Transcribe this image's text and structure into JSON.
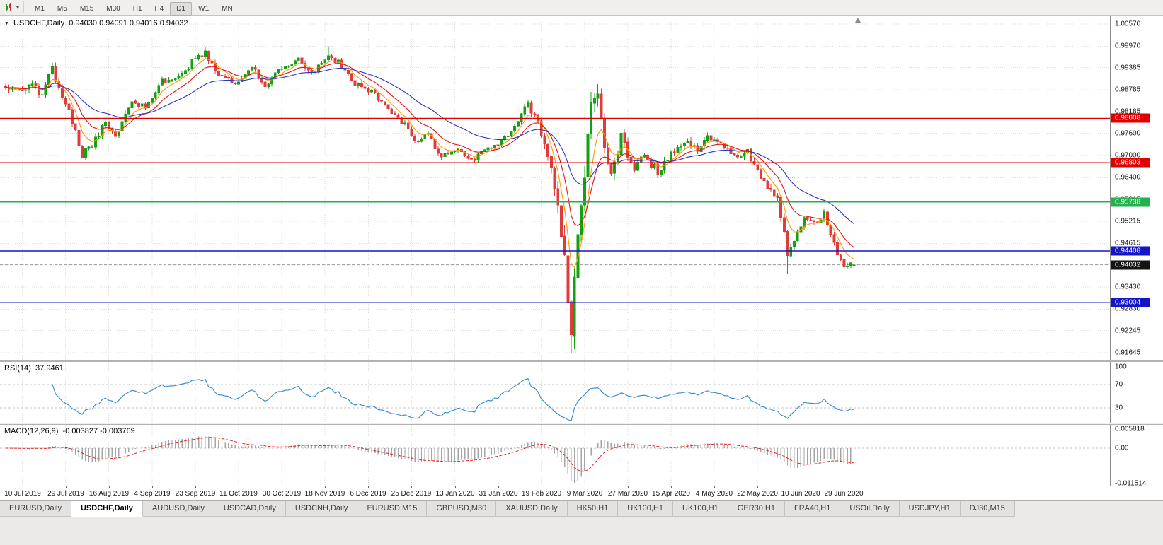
{
  "toolbar": {
    "chart_icon": "candlestick-chart-icon",
    "timeframes": [
      {
        "label": "M1",
        "active": false
      },
      {
        "label": "M5",
        "active": false
      },
      {
        "label": "M15",
        "active": false
      },
      {
        "label": "M30",
        "active": false
      },
      {
        "label": "H1",
        "active": false
      },
      {
        "label": "H4",
        "active": false
      },
      {
        "label": "D1",
        "active": true
      },
      {
        "label": "W1",
        "active": false
      },
      {
        "label": "MN",
        "active": false
      }
    ]
  },
  "main_chart": {
    "symbol": "USDCHF,Daily",
    "ohlc_text": "0.94030 0.94091 0.94016 0.94032",
    "y_axis_labels": [
      "1.00570",
      "0.99970",
      "0.99385",
      "0.98785",
      "0.98185",
      "0.97600",
      "0.97000",
      "0.96400",
      "0.95815",
      "0.95215",
      "0.94615",
      "0.94030",
      "0.93430",
      "0.92830",
      "0.92245",
      "0.91645"
    ],
    "x_axis_labels": [
      "10 Jul 2019",
      "29 Jul 2019",
      "16 Aug 2019",
      "4 Sep 2019",
      "23 Sep 2019",
      "11 Oct 2019",
      "30 Oct 2019",
      "18 Nov 2019",
      "6 Dec 2019",
      "25 Dec 2019",
      "13 Jan 2020",
      "31 Jan 2020",
      "19 Feb 2020",
      "9 Mar 2020",
      "27 Mar 2020",
      "15 Apr 2020",
      "4 May 2020",
      "22 May 2020",
      "10 Jun 2020",
      "29 Jun 2020"
    ],
    "hlines": [
      {
        "value": 0.98008,
        "label": "0.98008",
        "color": "#e00000"
      },
      {
        "value": 0.96803,
        "label": "0.96803",
        "color": "#e00000"
      },
      {
        "value": 0.95738,
        "label": "0.95738",
        "color": "#22b14c"
      },
      {
        "value": 0.94408,
        "label": "0.94408",
        "color": "#1414c8"
      },
      {
        "value": 0.93004,
        "label": "0.93004",
        "color": "#1414c8"
      }
    ],
    "current_price": {
      "value": 0.94032,
      "label": "0.94032",
      "tag_color": "#141414"
    }
  },
  "chart_data": {
    "type": "candlestick",
    "symbol": "USDCHF",
    "period": "Daily",
    "ylim": [
      0.91645,
      1.0057
    ],
    "last_bar": {
      "open": 0.9403,
      "high": 0.94091,
      "low": 0.94016,
      "close": 0.94032
    },
    "bars": 256,
    "first_label_bar": 5,
    "bars_per_label": 13,
    "up_color": "#12a112",
    "down_color": "#e03c3c",
    "price_anchors": [
      [
        0,
        0.9885,
        0.0022
      ],
      [
        4,
        0.987,
        0.0022
      ],
      [
        7,
        0.9898,
        0.0022
      ],
      [
        11,
        0.986,
        0.0024
      ],
      [
        14,
        0.9936,
        0.0026
      ],
      [
        18,
        0.9845,
        0.0024
      ],
      [
        23,
        0.9706,
        0.0024
      ],
      [
        26,
        0.9728,
        0.002
      ],
      [
        30,
        0.979,
        0.002
      ],
      [
        33,
        0.9756,
        0.0018
      ],
      [
        38,
        0.9852,
        0.0022
      ],
      [
        42,
        0.9828,
        0.0018
      ],
      [
        47,
        0.99,
        0.0018
      ],
      [
        53,
        0.9918,
        0.0018
      ],
      [
        57,
        0.9962,
        0.0018
      ],
      [
        60,
        0.9982,
        0.0018
      ],
      [
        64,
        0.992,
        0.0018
      ],
      [
        70,
        0.9896,
        0.0016
      ],
      [
        74,
        0.9934,
        0.0016
      ],
      [
        78,
        0.9896,
        0.0016
      ],
      [
        82,
        0.9928,
        0.0016
      ],
      [
        88,
        0.9962,
        0.0016
      ],
      [
        92,
        0.9918,
        0.0016
      ],
      [
        97,
        0.997,
        0.0018
      ],
      [
        100,
        0.9952,
        0.0016
      ],
      [
        105,
        0.9896,
        0.0016
      ],
      [
        110,
        0.987,
        0.0016
      ],
      [
        114,
        0.9838,
        0.0016
      ],
      [
        120,
        0.9782,
        0.0016
      ],
      [
        123,
        0.9742,
        0.0016
      ],
      [
        127,
        0.976,
        0.0014
      ],
      [
        130,
        0.9702,
        0.0016
      ],
      [
        136,
        0.9718,
        0.0014
      ],
      [
        140,
        0.9687,
        0.0014
      ],
      [
        144,
        0.9714,
        0.0014
      ],
      [
        148,
        0.973,
        0.0014
      ],
      [
        153,
        0.9778,
        0.0016
      ],
      [
        157,
        0.9838,
        0.0018
      ],
      [
        160,
        0.9798,
        0.0022
      ],
      [
        163,
        0.97,
        0.0035
      ],
      [
        166,
        0.9556,
        0.0048
      ],
      [
        168,
        0.942,
        0.0062
      ],
      [
        170,
        0.9222,
        0.0085
      ],
      [
        172,
        0.9475,
        0.009
      ],
      [
        174,
        0.9648,
        0.0075
      ],
      [
        176,
        0.9828,
        0.006
      ],
      [
        178,
        0.9866,
        0.005
      ],
      [
        180,
        0.9705,
        0.0045
      ],
      [
        182,
        0.9628,
        0.004
      ],
      [
        185,
        0.9756,
        0.0034
      ],
      [
        189,
        0.9652,
        0.003
      ],
      [
        192,
        0.97,
        0.0026
      ],
      [
        196,
        0.966,
        0.0024
      ],
      [
        200,
        0.97,
        0.0022
      ],
      [
        204,
        0.9744,
        0.002
      ],
      [
        208,
        0.9712,
        0.002
      ],
      [
        211,
        0.9756,
        0.002
      ],
      [
        214,
        0.9736,
        0.0018
      ],
      [
        219,
        0.97,
        0.0018
      ],
      [
        223,
        0.9714,
        0.0018
      ],
      [
        226,
        0.9652,
        0.002
      ],
      [
        229,
        0.9616,
        0.002
      ],
      [
        232,
        0.9588,
        0.0022
      ],
      [
        235,
        0.9428,
        0.003
      ],
      [
        237,
        0.9462,
        0.0026
      ],
      [
        240,
        0.9532,
        0.0022
      ],
      [
        243,
        0.9512,
        0.002
      ],
      [
        246,
        0.954,
        0.0018
      ],
      [
        249,
        0.9462,
        0.002
      ],
      [
        252,
        0.9398,
        0.002
      ],
      [
        255,
        0.94032,
        0.0014
      ]
    ],
    "wick_overrides": [
      {
        "bar": 14,
        "high": 0.9952
      },
      {
        "bar": 60,
        "high": 0.9995
      },
      {
        "bar": 97,
        "high": 0.9997
      },
      {
        "bar": 157,
        "high": 0.9852
      },
      {
        "bar": 170,
        "low": 0.91645
      },
      {
        "bar": 178,
        "high": 0.9894
      },
      {
        "bar": 235,
        "low": 0.9378
      },
      {
        "bar": 252,
        "low": 0.9366
      },
      {
        "bar": 255,
        "open": 0.9403,
        "high": 0.94091,
        "low": 0.94016,
        "close": 0.94032
      }
    ],
    "moving_averages": [
      {
        "period": 6,
        "color": "#ff9900"
      },
      {
        "period": 13,
        "color": "#e01414"
      },
      {
        "period": 32,
        "color": "#2a35c8"
      }
    ]
  },
  "rsi_panel": {
    "name": "RSI(14)",
    "value": "37.9461",
    "period": 14,
    "line_color": "#2f86d6",
    "levels": [
      70,
      30
    ],
    "scale_labels": [
      {
        "text": "100",
        "value": 100
      },
      {
        "text": "70",
        "value": 70
      },
      {
        "text": "30",
        "value": 30
      }
    ]
  },
  "macd_panel": {
    "name": "MACD(12,26,9)",
    "values": "-0.003827 -0.003769",
    "fast": 12,
    "slow": 26,
    "signal": 9,
    "histogram_color": "#a6a6a6",
    "signal_color": "#e02020",
    "scale_labels": [
      {
        "text": "0.005818",
        "rel_y": 6
      },
      {
        "text": "0.00",
        "rel_y": 33
      },
      {
        "text": "-0.011514",
        "rel_y": 83
      }
    ]
  },
  "tabs": [
    {
      "label": "EURUSD,Daily",
      "active": false
    },
    {
      "label": "USDCHF,Daily",
      "active": true
    },
    {
      "label": "AUDUSD,Daily",
      "active": false
    },
    {
      "label": "USDCAD,Daily",
      "active": false
    },
    {
      "label": "USDCNH,Daily",
      "active": false
    },
    {
      "label": "EURUSD,M15",
      "active": false
    },
    {
      "label": "GBPUSD,M30",
      "active": false
    },
    {
      "label": "XAUUSD,Daily",
      "active": false
    },
    {
      "label": "HK50,H1",
      "active": false
    },
    {
      "label": "UK100,H1",
      "active": false
    },
    {
      "label": "UK100,H1",
      "active": false
    },
    {
      "label": "GER30,H1",
      "active": false
    },
    {
      "label": "FRA40,H1",
      "active": false
    },
    {
      "label": "USOil,Daily",
      "active": false
    },
    {
      "label": "USDJPY,H1",
      "active": false
    },
    {
      "label": "DJ30,M15",
      "active": false
    }
  ]
}
